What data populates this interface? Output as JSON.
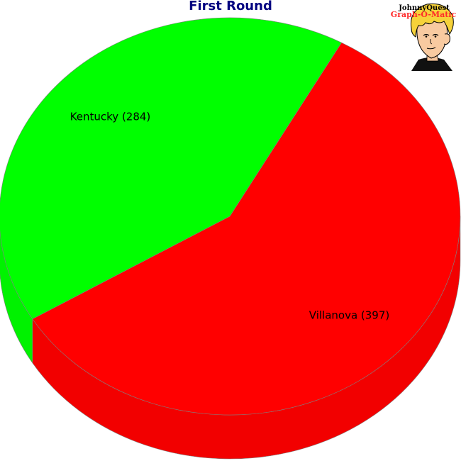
{
  "chart_data": {
    "type": "pie",
    "title": "First Round",
    "style": "3d",
    "slices": [
      {
        "label": "Villanova (397)",
        "value": 397,
        "color": "#ff0000"
      },
      {
        "label": "Kentucky (284)",
        "value": 284,
        "color": "#00ff00"
      }
    ]
  },
  "logo": {
    "line1": "JohnnyQuest",
    "line2": "Graph-O-Matic"
  }
}
